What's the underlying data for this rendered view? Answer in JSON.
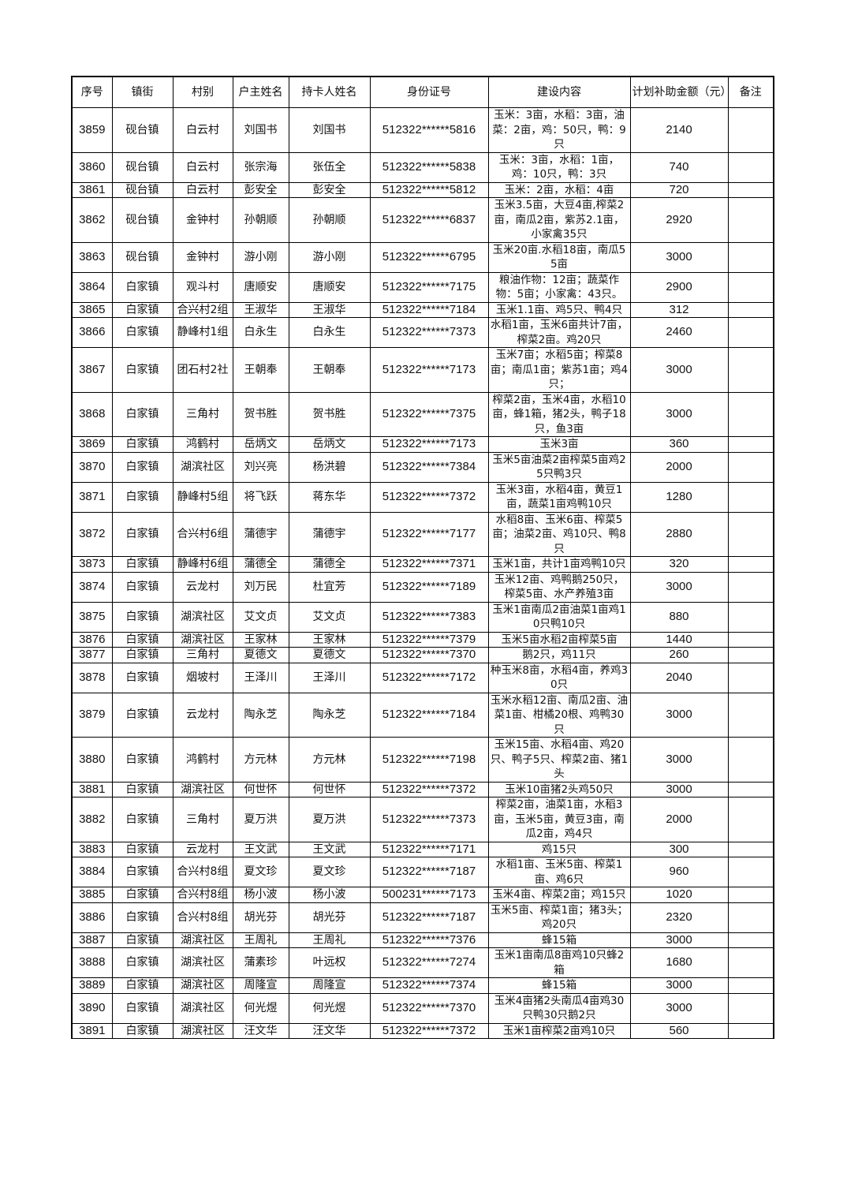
{
  "table": {
    "headers": [
      "序号",
      "镇街",
      "村别",
      "户主姓名",
      "持卡人姓名",
      "身份证号",
      "建设内容",
      "计划补助金额（元）",
      "备注"
    ],
    "rows": [
      [
        "3859",
        "砚台镇",
        "白云村",
        "刘国书",
        "刘国书",
        "512322******5816",
        "玉米：3亩，水稻：3亩，油菜：2亩，鸡：50只，鸭：9只",
        "2140",
        ""
      ],
      [
        "3860",
        "砚台镇",
        "白云村",
        "张宗海",
        "张伍全",
        "512322******5838",
        "玉米：3亩，水稻：1亩，鸡：10只，鸭：3只",
        "740",
        ""
      ],
      [
        "3861",
        "砚台镇",
        "白云村",
        "彭安全",
        "彭安全",
        "512322******5812",
        "玉米：2亩，水稻：4亩",
        "720",
        ""
      ],
      [
        "3862",
        "砚台镇",
        "金钟村",
        "孙朝顺",
        "孙朝顺",
        "512322******6837",
        "玉米3.5亩，大豆4亩,榨菜2亩，南瓜2亩，紫苏2.1亩，小家禽35只",
        "2920",
        ""
      ],
      [
        "3863",
        "砚台镇",
        "金钟村",
        "游小刚",
        "游小刚",
        "512322******6795",
        "玉米20亩.水稻18亩，南瓜55亩",
        "3000",
        ""
      ],
      [
        "3864",
        "白家镇",
        "观斗村",
        "唐顺安",
        "唐顺安",
        "512322******7175",
        "粮油作物：12亩；蔬菜作物：5亩；小家禽：43只。",
        "2900",
        ""
      ],
      [
        "3865",
        "白家镇",
        "合兴村2组",
        "王淑华",
        "王淑华",
        "512322******7184",
        "玉米1.1亩、鸡5只、鸭4只",
        "312",
        ""
      ],
      [
        "3866",
        "白家镇",
        "静峰村1组",
        "白永生",
        "白永生",
        "512322******7373",
        "水稻1亩，玉米6亩共计7亩，榨菜2亩。鸡20只",
        "2460",
        ""
      ],
      [
        "3867",
        "白家镇",
        "团石村2社",
        "王朝奉",
        "王朝奉",
        "512322******7173",
        "玉米7亩；水稻5亩；榨菜8亩；南瓜1亩；紫苏1亩；鸡4只；",
        "3000",
        ""
      ],
      [
        "3868",
        "白家镇",
        "三角村",
        "贺书胜",
        "贺书胜",
        "512322******7375",
        "榨菜2亩，玉米4亩，水稻10亩，蜂1箱，猪2头，鸭子18只，鱼3亩",
        "3000",
        ""
      ],
      [
        "3869",
        "白家镇",
        "鸿鹤村",
        "岳炳文",
        "岳炳文",
        "512322******7173",
        "玉米3亩",
        "360",
        ""
      ],
      [
        "3870",
        "白家镇",
        "湖滨社区",
        "刘兴亮",
        "杨洪碧",
        "512322******7384",
        "玉米5亩油菜2亩榨菜5亩鸡25只鸭3只",
        "2000",
        ""
      ],
      [
        "3871",
        "白家镇",
        "静峰村5组",
        "将飞跃",
        "蒋东华",
        "512322******7372",
        "玉米3亩，水稻4亩，黄豆1亩，蔬菜1亩鸡鸭10只",
        "1280",
        ""
      ],
      [
        "3872",
        "白家镇",
        "合兴村6组",
        "蒲德宇",
        "蒲德宇",
        "512322******7177",
        "水稻8亩、玉米6亩、榨菜5亩；油菜2亩、鸡10只、鸭8只",
        "2880",
        ""
      ],
      [
        "3873",
        "白家镇",
        "静峰村6组",
        "蒲德全",
        "蒲德全",
        "512322******7371",
        "玉米1亩，共计1亩鸡鸭10只",
        "320",
        ""
      ],
      [
        "3874",
        "白家镇",
        "云龙村",
        "刘万民",
        "杜宜芳",
        "512322******7189",
        "玉米12亩、鸡鸭鹅250只，榨菜5亩、水产养殖3亩",
        "3000",
        ""
      ],
      [
        "3875",
        "白家镇",
        "湖滨社区",
        "艾文贞",
        "艾文贞",
        "512322******7383",
        "玉米1亩南瓜2亩油菜1亩鸡10只鸭10只",
        "880",
        ""
      ],
      [
        "3876",
        "白家镇",
        "湖滨社区",
        "王家林",
        "王家林",
        "512322******7379",
        "玉米5亩水稻2亩榨菜5亩",
        "1440",
        ""
      ],
      [
        "3877",
        "白家镇",
        "三角村",
        "夏德文",
        "夏德文",
        "512322******7370",
        "鹅2只，鸡11只",
        "260",
        ""
      ],
      [
        "3878",
        "白家镇",
        "烟坡村",
        "王泽川",
        "王泽川",
        "512322******7172",
        "种玉米8亩，水稻4亩，养鸡30只",
        "2040",
        ""
      ],
      [
        "3879",
        "白家镇",
        "云龙村",
        "陶永芝",
        "陶永芝",
        "512322******7184",
        "玉米水稻12亩、南瓜2亩、油菜1亩、柑橘20根、鸡鸭30只",
        "3000",
        ""
      ],
      [
        "3880",
        "白家镇",
        "鸿鹤村",
        "方元林",
        "方元林",
        "512322******7198",
        "玉米15亩、水稻4亩、鸡20只、鸭子5只、榨菜2亩、猪1头",
        "3000",
        ""
      ],
      [
        "3881",
        "白家镇",
        "湖滨社区",
        "何世怀",
        "何世怀",
        "512322******7372",
        "玉米10亩猪2头鸡50只",
        "3000",
        ""
      ],
      [
        "3882",
        "白家镇",
        "三角村",
        "夏万洪",
        "夏万洪",
        "512322******7373",
        "榨菜2亩，油菜1亩，水稻3亩，玉米5亩，黄豆3亩，南瓜2亩，鸡4只",
        "2000",
        ""
      ],
      [
        "3883",
        "白家镇",
        "云龙村",
        "王文武",
        "王文武",
        "512322******7171",
        "鸡15只",
        "300",
        ""
      ],
      [
        "3884",
        "白家镇",
        "合兴村8组",
        "夏文珍",
        "夏文珍",
        "512322******7187",
        "水稻1亩、玉米5亩、榨菜1亩、鸡6只",
        "960",
        ""
      ],
      [
        "3885",
        "白家镇",
        "合兴村8组",
        "杨小波",
        "杨小波",
        "500231******7173",
        "玉米4亩、榨菜2亩；鸡15只",
        "1020",
        ""
      ],
      [
        "3886",
        "白家镇",
        "合兴村8组",
        "胡光芬",
        "胡光芬",
        "512322******7187",
        "玉米5亩、榨菜1亩；猪3头；鸡20只",
        "2320",
        ""
      ],
      [
        "3887",
        "白家镇",
        "湖滨社区",
        "王周礼",
        "王周礼",
        "512322******7376",
        "蜂15箱",
        "3000",
        ""
      ],
      [
        "3888",
        "白家镇",
        "湖滨社区",
        "蒲素珍",
        "叶远权",
        "512322******7274",
        "玉米1亩南瓜8亩鸡10只蜂2箱",
        "1680",
        ""
      ],
      [
        "3889",
        "白家镇",
        "湖滨社区",
        "周隆宣",
        "周隆宣",
        "512322******7374",
        "蜂15箱",
        "3000",
        ""
      ],
      [
        "3890",
        "白家镇",
        "湖滨社区",
        "何光煜",
        "何光煜",
        "512322******7370",
        "玉米4亩猪2头南瓜4亩鸡30只鸭30只鹅2只",
        "3000",
        ""
      ],
      [
        "3891",
        "白家镇",
        "湖滨社区",
        "汪文华",
        "汪文华",
        "512322******7372",
        "玉米1亩榨菜2亩鸡10只",
        "560",
        ""
      ]
    ]
  }
}
